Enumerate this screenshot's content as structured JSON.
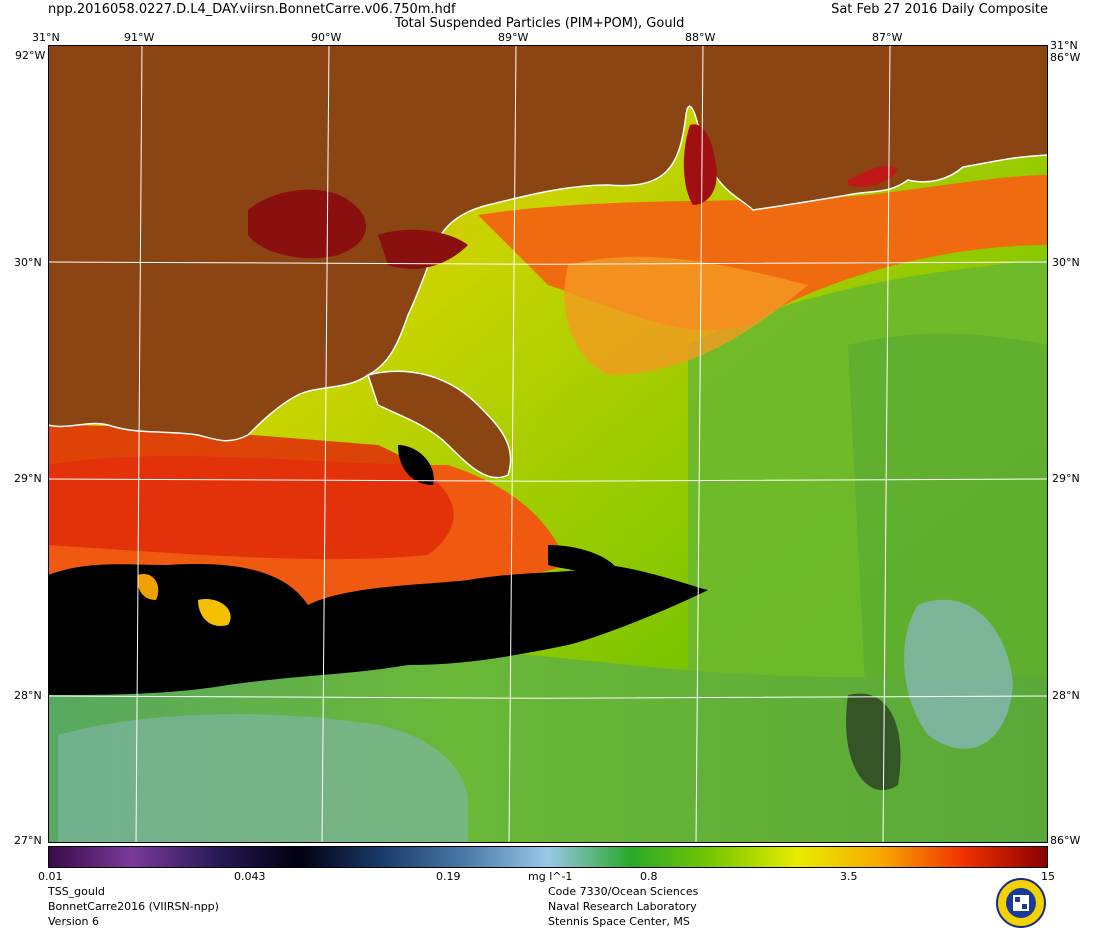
{
  "header": {
    "filename": "npp.2016058.0227.D.L4_DAY.viirsn.BonnetCarre.v06.750m.hdf",
    "title": "Total Suspended Particles (PIM+POM), Gould",
    "date": "Sat Feb 27 2016 Daily Composite"
  },
  "map": {
    "lon_top": [
      "91°W",
      "90°W",
      "89°W",
      "88°W",
      "87°W"
    ],
    "corner_lat_top": "31°N",
    "corner_lon_top": "92°W",
    "lat_left": [
      "30°N",
      "29°N",
      "28°N"
    ],
    "lat_right": [
      "30°N",
      "29°N",
      "28°N"
    ],
    "corner_lat_bottom": "27°N",
    "corner_lon_bottom": "86°W",
    "colors": {
      "land": "#8b4513",
      "coast": "#ffffff",
      "grid": "#ffffff",
      "no_data": "#000000"
    }
  },
  "colorbar": {
    "ticks": [
      "0.01",
      "0.043",
      "0.19",
      "0.8",
      "3.5",
      "15"
    ],
    "units": "mg l^-1",
    "stops": [
      "#3a0a4a",
      "#7a3a9a",
      "#2a1a5a",
      "#000010",
      "#1a3a6a",
      "#4a7aa8",
      "#9ac8ea",
      "#28a828",
      "#7ac800",
      "#e8ec00",
      "#f8a800",
      "#f03000",
      "#8a0000"
    ]
  },
  "footer": {
    "left": [
      "TSS_gould",
      "BonnetCarre2016 (VIIRSN-npp)",
      "Version 6"
    ],
    "center": [
      "Code 7330/Ocean Sciences",
      "Naval Research Laboratory",
      "Stennis Space Center, MS"
    ]
  }
}
